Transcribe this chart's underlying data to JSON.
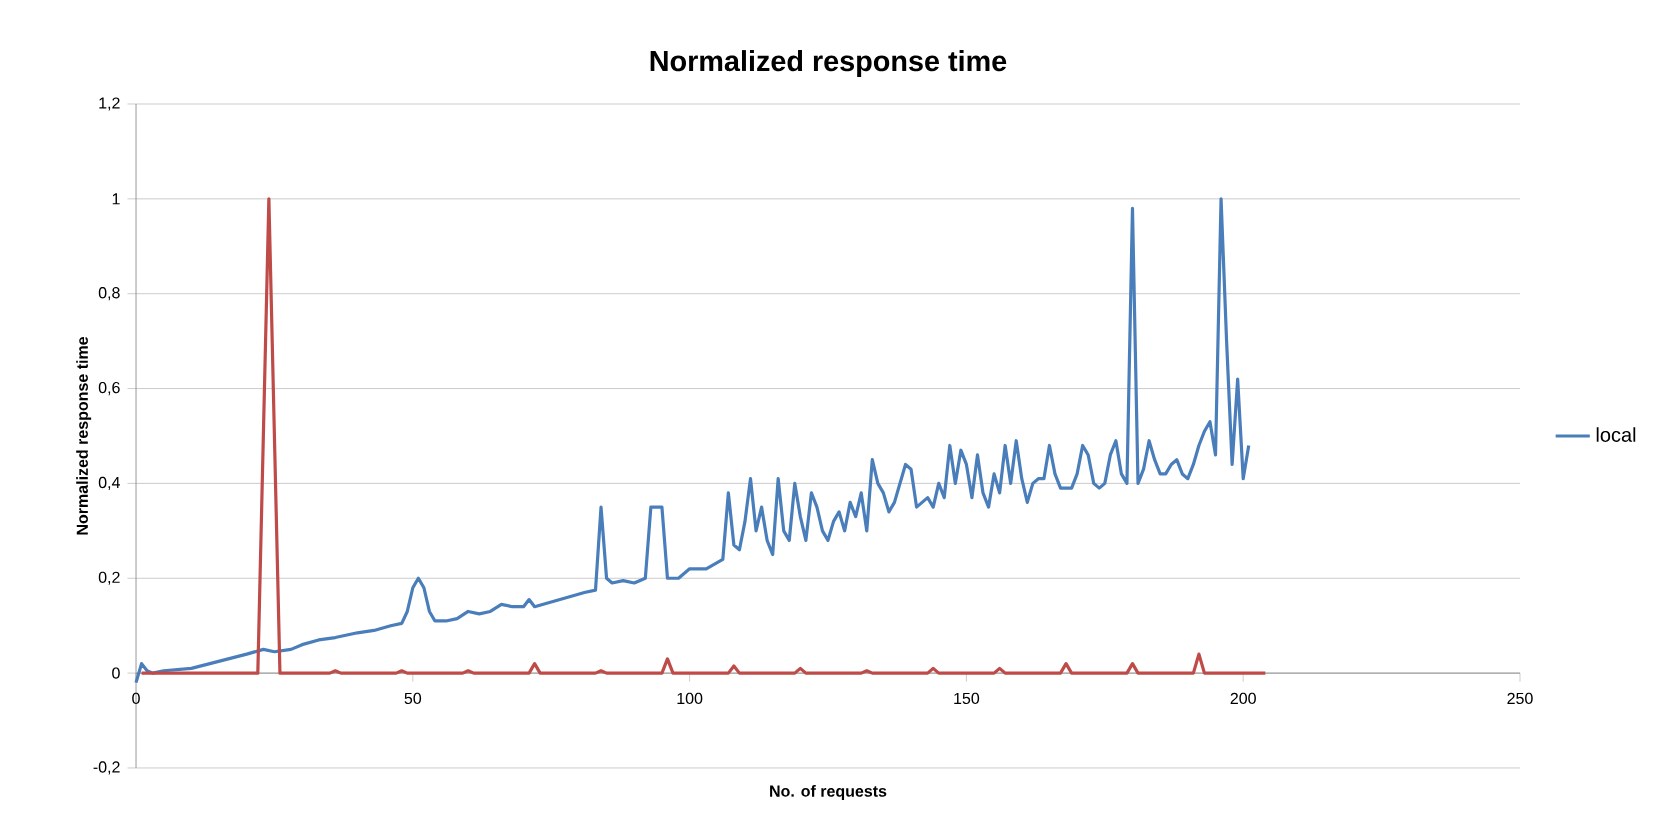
{
  "chart_data": {
    "type": "line",
    "title": "Normalized response time",
    "xlabel": "No. of requests",
    "ylabel": "Normalized response time",
    "xlim": [
      0,
      250
    ],
    "xticks": [
      0,
      50,
      100,
      150,
      200,
      250
    ],
    "ylim": [
      -0.2,
      1.2
    ],
    "yticks": [
      {
        "value": -0.2,
        "label": "-0,2"
      },
      0,
      {
        "value": 0.2,
        "label": "0,2"
      },
      {
        "value": 0.4,
        "label": "0,4"
      },
      {
        "value": 0.6,
        "label": "0,6"
      },
      {
        "value": 0.8,
        "label": "0,8"
      },
      1,
      {
        "value": 1.2,
        "label": "1,2"
      }
    ],
    "grid": "y",
    "legend": "right",
    "marker": "none",
    "line_style": "solid",
    "series": [
      {
        "name": "local",
        "color": "#4a7ebb",
        "x": [
          0,
          1,
          2,
          3,
          5,
          10,
          15,
          20,
          23,
          25,
          28,
          30,
          33,
          36,
          40,
          43,
          46,
          48,
          49,
          50,
          51,
          52,
          53,
          54,
          56,
          58,
          60,
          62,
          64,
          66,
          68,
          70,
          71,
          72,
          75,
          78,
          81,
          83,
          84,
          85,
          86,
          88,
          90,
          92,
          93,
          95,
          96,
          98,
          100,
          103,
          106,
          107,
          108,
          109,
          110,
          111,
          112,
          113,
          114,
          115,
          116,
          117,
          118,
          119,
          120,
          121,
          122,
          123,
          124,
          125,
          126,
          127,
          128,
          129,
          130,
          131,
          132,
          133,
          134,
          135,
          136,
          137,
          138,
          139,
          140,
          141,
          142,
          143,
          144,
          145,
          146,
          147,
          148,
          149,
          150,
          151,
          152,
          153,
          154,
          155,
          156,
          157,
          158,
          159,
          160,
          161,
          162,
          163,
          164,
          165,
          166,
          167,
          168,
          169,
          170,
          171,
          172,
          173,
          174,
          175,
          176,
          177,
          178,
          179,
          180,
          181,
          182,
          183,
          184,
          185,
          186,
          187,
          188,
          189,
          190,
          191,
          192,
          193,
          194,
          195,
          196,
          197,
          198,
          199,
          200,
          201
        ],
        "values": [
          -0.02,
          0.02,
          0.005,
          0,
          0.005,
          0.01,
          0.025,
          0.04,
          0.05,
          0.045,
          0.05,
          0.06,
          0.07,
          0.075,
          0.085,
          0.09,
          0.1,
          0.105,
          0.13,
          0.18,
          0.2,
          0.18,
          0.13,
          0.11,
          0.11,
          0.115,
          0.13,
          0.125,
          0.13,
          0.145,
          0.14,
          0.14,
          0.155,
          0.14,
          0.15,
          0.16,
          0.17,
          0.175,
          0.35,
          0.2,
          0.19,
          0.195,
          0.19,
          0.2,
          0.35,
          0.35,
          0.2,
          0.2,
          0.22,
          0.22,
          0.24,
          0.38,
          0.27,
          0.26,
          0.32,
          0.41,
          0.3,
          0.35,
          0.28,
          0.25,
          0.41,
          0.3,
          0.28,
          0.4,
          0.33,
          0.28,
          0.38,
          0.35,
          0.3,
          0.28,
          0.32,
          0.34,
          0.3,
          0.36,
          0.33,
          0.38,
          0.3,
          0.45,
          0.4,
          0.38,
          0.34,
          0.36,
          0.4,
          0.44,
          0.43,
          0.35,
          0.36,
          0.37,
          0.35,
          0.4,
          0.37,
          0.48,
          0.4,
          0.47,
          0.44,
          0.37,
          0.46,
          0.38,
          0.35,
          0.42,
          0.38,
          0.48,
          0.4,
          0.49,
          0.41,
          0.36,
          0.4,
          0.41,
          0.41,
          0.48,
          0.42,
          0.39,
          0.39,
          0.39,
          0.42,
          0.48,
          0.46,
          0.4,
          0.39,
          0.4,
          0.46,
          0.49,
          0.42,
          0.4,
          0.98,
          0.4,
          0.43,
          0.49,
          0.45,
          0.42,
          0.42,
          0.44,
          0.45,
          0.42,
          0.41,
          0.44,
          0.48,
          0.51,
          0.53,
          0.46,
          1.0,
          0.7,
          0.44,
          0.62,
          0.41,
          0.48
        ]
      },
      {
        "color": "#be4b48",
        "x": [
          1,
          22,
          23,
          24,
          25,
          26,
          35,
          36,
          37,
          47,
          48,
          49,
          59,
          60,
          61,
          71,
          72,
          73,
          83,
          84,
          85,
          95,
          96,
          97,
          107,
          108,
          109,
          119,
          120,
          121,
          131,
          132,
          133,
          143,
          144,
          145,
          155,
          156,
          157,
          167,
          168,
          169,
          179,
          180,
          181,
          191,
          192,
          193,
          204
        ],
        "values": [
          0,
          0,
          0.5,
          1.0,
          0.5,
          0,
          0,
          0.005,
          0,
          0,
          0.005,
          0,
          0,
          0.005,
          0,
          0,
          0.02,
          0,
          0,
          0.005,
          0,
          0,
          0.03,
          0,
          0,
          0.015,
          0,
          0,
          0.01,
          0,
          0,
          0.005,
          0,
          0,
          0.01,
          0,
          0,
          0.01,
          0,
          0,
          0.02,
          0,
          0,
          0.02,
          0,
          0,
          0.04,
          0,
          0
        ]
      }
    ]
  }
}
